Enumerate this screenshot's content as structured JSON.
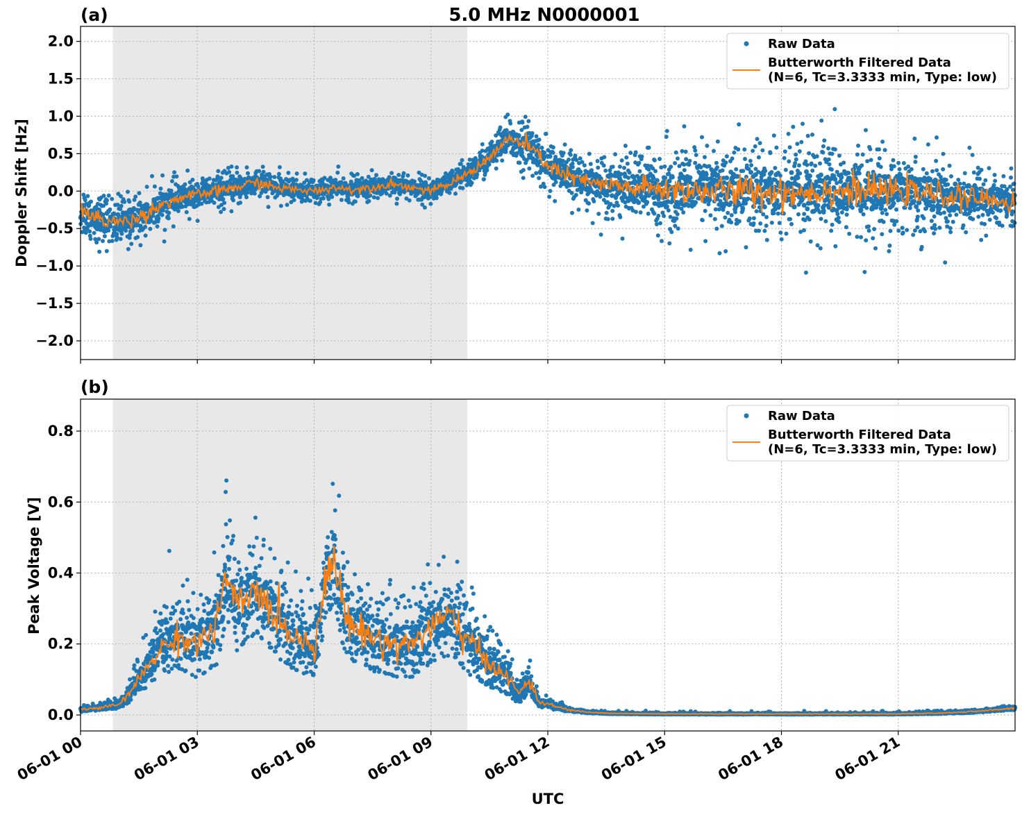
{
  "title": "5.0 MHz N0000001",
  "xlabel": "UTC",
  "x_ticks": [
    "06-01 00",
    "06-01 03",
    "06-01 06",
    "06-01 09",
    "06-01 12",
    "06-01 15",
    "06-01 18",
    "06-01 21"
  ],
  "colors": {
    "raw": "#1f77b4",
    "filtered": "#ff7f0e",
    "shade": "#e8e8e8"
  },
  "legend": {
    "raw_label": "Raw Data",
    "filtered_label_1": "Butterworth Filtered Data",
    "filtered_label_2": "(N=6, Tc=3.3333 min, Type: low)"
  },
  "chart_data": [
    {
      "type": "scatter",
      "panel_label": "(a)",
      "ylabel": "Doppler Shift [Hz]",
      "xlim_hours": [
        0,
        24
      ],
      "ylim": [
        -2.25,
        2.2
      ],
      "y_ticks": [
        2.0,
        1.5,
        1.0,
        0.5,
        0.0,
        -0.5,
        -1.0,
        -1.5,
        -2.0
      ],
      "y_tick_labels": [
        "2.0",
        "1.5",
        "1.0",
        "0.5",
        "0.0",
        "−0.5",
        "−1.0",
        "−1.5",
        "−2.0"
      ],
      "shaded_span_hours": [
        0.83,
        9.93
      ],
      "grid": true,
      "legend_position": "upper right",
      "series": [
        {
          "name": "Raw Data",
          "kind": "scatter",
          "profile_hours": [
            0,
            0.5,
            1,
            1.5,
            2,
            2.5,
            3,
            3.5,
            4,
            4.5,
            5,
            5.5,
            6,
            6.5,
            7,
            7.5,
            8,
            8.5,
            9,
            9.5,
            10,
            10.5,
            11,
            11.5,
            12,
            12.5,
            13,
            13.5,
            14,
            15,
            16,
            17,
            18,
            19,
            20,
            21,
            22,
            23,
            24
          ],
          "profile_center": [
            -0.25,
            -0.38,
            -0.42,
            -0.35,
            -0.2,
            -0.1,
            -0.05,
            0.0,
            0.05,
            0.12,
            0.05,
            0.02,
            0.0,
            0.05,
            0.02,
            0.05,
            0.1,
            0.05,
            0.0,
            0.1,
            0.25,
            0.45,
            0.7,
            0.6,
            0.35,
            0.2,
            0.12,
            0.08,
            0.05,
            0.02,
            0.0,
            0.0,
            -0.02,
            0.0,
            0.0,
            0.0,
            -0.05,
            -0.1,
            -0.15
          ],
          "profile_spread": [
            0.3,
            0.3,
            0.3,
            0.28,
            0.25,
            0.22,
            0.2,
            0.2,
            0.2,
            0.2,
            0.15,
            0.15,
            0.15,
            0.15,
            0.15,
            0.15,
            0.15,
            0.15,
            0.15,
            0.15,
            0.18,
            0.2,
            0.25,
            0.3,
            0.3,
            0.3,
            0.3,
            0.35,
            0.4,
            0.5,
            0.55,
            0.6,
            0.6,
            0.6,
            0.55,
            0.5,
            0.45,
            0.4,
            0.35
          ]
        },
        {
          "name": "Butterworth Filtered Data (N=6, Tc=3.3333 min, Type: low)",
          "kind": "line",
          "x_hours": [
            0,
            0.5,
            1,
            1.5,
            2,
            2.5,
            3,
            3.5,
            4,
            4.5,
            5,
            5.5,
            6,
            6.5,
            7,
            7.5,
            8,
            8.5,
            9,
            9.5,
            10,
            10.5,
            11,
            11.5,
            12,
            12.5,
            13,
            13.5,
            14,
            15,
            16,
            17,
            18,
            19,
            20,
            21,
            22,
            23,
            24
          ],
          "y": [
            -0.25,
            -0.38,
            -0.42,
            -0.35,
            -0.2,
            -0.1,
            -0.05,
            0.0,
            0.05,
            0.12,
            0.05,
            0.02,
            0.0,
            0.05,
            0.02,
            0.05,
            0.1,
            0.05,
            0.0,
            0.1,
            0.25,
            0.45,
            0.7,
            0.6,
            0.35,
            0.2,
            0.12,
            0.08,
            0.05,
            0.02,
            0.0,
            0.0,
            -0.02,
            0.0,
            0.0,
            0.0,
            -0.05,
            -0.1,
            -0.15
          ]
        }
      ]
    },
    {
      "type": "scatter",
      "panel_label": "(b)",
      "ylabel": "Peak Voltage [V]",
      "xlim_hours": [
        0,
        24
      ],
      "ylim": [
        -0.045,
        0.89
      ],
      "y_ticks": [
        0.8,
        0.6,
        0.4,
        0.2,
        0.0
      ],
      "y_tick_labels": [
        "0.8",
        "0.6",
        "0.4",
        "0.2",
        "0.0"
      ],
      "shaded_span_hours": [
        0.83,
        9.93
      ],
      "grid": true,
      "legend_position": "upper right",
      "series": [
        {
          "name": "Raw Data",
          "kind": "scatter",
          "profile_hours": [
            0,
            0.5,
            1,
            1.25,
            1.5,
            2,
            2.5,
            3,
            3.5,
            3.75,
            4,
            4.5,
            5,
            5.5,
            6,
            6.25,
            6.5,
            6.75,
            7,
            7.5,
            8,
            8.5,
            9,
            9.5,
            10,
            10.5,
            11,
            11.25,
            11.5,
            11.75,
            12,
            12.5,
            13,
            13.5,
            14,
            15,
            16,
            17,
            18,
            19,
            20,
            21,
            22,
            23,
            24
          ],
          "profile_center": [
            0.015,
            0.02,
            0.03,
            0.06,
            0.1,
            0.18,
            0.22,
            0.2,
            0.25,
            0.4,
            0.3,
            0.35,
            0.28,
            0.22,
            0.2,
            0.35,
            0.45,
            0.3,
            0.25,
            0.22,
            0.2,
            0.2,
            0.25,
            0.28,
            0.2,
            0.15,
            0.1,
            0.06,
            0.1,
            0.04,
            0.03,
            0.015,
            0.008,
            0.005,
            0.004,
            0.003,
            0.003,
            0.003,
            0.003,
            0.003,
            0.003,
            0.003,
            0.005,
            0.01,
            0.02
          ],
          "profile_spread": [
            0.01,
            0.01,
            0.015,
            0.03,
            0.05,
            0.09,
            0.11,
            0.12,
            0.14,
            0.16,
            0.15,
            0.15,
            0.14,
            0.12,
            0.12,
            0.14,
            0.16,
            0.14,
            0.13,
            0.12,
            0.12,
            0.12,
            0.13,
            0.14,
            0.11,
            0.09,
            0.06,
            0.04,
            0.05,
            0.02,
            0.015,
            0.008,
            0.004,
            0.003,
            0.002,
            0.002,
            0.002,
            0.002,
            0.002,
            0.002,
            0.002,
            0.002,
            0.003,
            0.005,
            0.008
          ]
        },
        {
          "name": "Butterworth Filtered Data (N=6, Tc=3.3333 min, Type: low)",
          "kind": "line",
          "x_hours": [
            0,
            0.5,
            1,
            1.25,
            1.5,
            2,
            2.5,
            3,
            3.5,
            3.75,
            4,
            4.5,
            5,
            5.5,
            6,
            6.25,
            6.5,
            6.75,
            7,
            7.5,
            8,
            8.5,
            9,
            9.5,
            10,
            10.5,
            11,
            11.25,
            11.5,
            11.75,
            12,
            12.5,
            13,
            13.5,
            14,
            15,
            16,
            17,
            18,
            19,
            20,
            21,
            22,
            23,
            24
          ],
          "y": [
            0.015,
            0.02,
            0.03,
            0.06,
            0.1,
            0.18,
            0.22,
            0.2,
            0.25,
            0.4,
            0.3,
            0.35,
            0.28,
            0.22,
            0.2,
            0.35,
            0.45,
            0.3,
            0.25,
            0.22,
            0.2,
            0.2,
            0.25,
            0.28,
            0.2,
            0.15,
            0.1,
            0.06,
            0.1,
            0.04,
            0.03,
            0.015,
            0.008,
            0.005,
            0.004,
            0.003,
            0.003,
            0.003,
            0.003,
            0.003,
            0.003,
            0.003,
            0.005,
            0.01,
            0.02
          ]
        }
      ]
    }
  ]
}
